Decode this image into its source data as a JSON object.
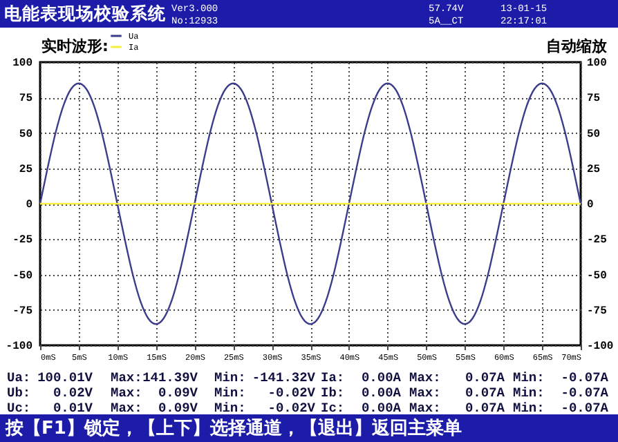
{
  "chart_data": {
    "type": "line",
    "title": "电能表现场校验系统",
    "subtitle": "实时波形:",
    "x": [
      0,
      1,
      2,
      3,
      4,
      5,
      6,
      7,
      8,
      9,
      10,
      11,
      12,
      13,
      14,
      15,
      16,
      17,
      18,
      19,
      20,
      21,
      22,
      23,
      24,
      25,
      26,
      27,
      28,
      29,
      30,
      31,
      32,
      33,
      34,
      35,
      36,
      37,
      38,
      39,
      40,
      41,
      42,
      43,
      44,
      45,
      46,
      47,
      48,
      49,
      50,
      51,
      52,
      53,
      54,
      55,
      56,
      57,
      58,
      59,
      60,
      61,
      62,
      63,
      64,
      65,
      66,
      67,
      68,
      69,
      70
    ],
    "series": [
      {
        "name": "Ua",
        "color": "#3c3c8c",
        "values": [
          0,
          26,
          50,
          69,
          81,
          85,
          81,
          69,
          50,
          26,
          0,
          -26,
          -50,
          -69,
          -81,
          -85,
          -81,
          -69,
          -50,
          -26,
          0,
          26,
          50,
          69,
          81,
          85,
          81,
          69,
          50,
          26,
          0,
          -26,
          -50,
          -69,
          -81,
          -85,
          -81,
          -69,
          -50,
          -26,
          0,
          26,
          50,
          69,
          81,
          85,
          81,
          69,
          50,
          26,
          0,
          -26,
          -50,
          -69,
          -81,
          -85,
          -81,
          -69,
          -50,
          -26,
          0,
          26,
          50,
          69,
          81,
          85,
          81,
          69,
          50,
          26,
          0
        ]
      },
      {
        "name": "Ia",
        "color": "#f5f03c",
        "values": [
          0,
          0,
          0,
          0,
          0,
          0,
          0,
          0,
          0,
          0,
          0,
          0,
          0,
          0,
          0,
          0,
          0,
          0,
          0,
          0,
          0,
          0,
          0,
          0,
          0,
          0,
          0,
          0,
          0,
          0,
          0,
          0,
          0,
          0,
          0,
          0,
          0,
          0,
          0,
          0,
          0,
          0,
          0,
          0,
          0,
          0,
          0,
          0,
          0,
          0,
          0,
          0,
          0,
          0,
          0,
          0,
          0,
          0,
          0,
          0,
          0,
          0,
          0,
          0,
          0,
          0,
          0,
          0,
          0,
          0,
          0
        ]
      }
    ],
    "xlim": [
      0,
      70
    ],
    "xticks": [
      {
        "value": 0,
        "label": "0mS"
      },
      {
        "value": 5,
        "label": "5mS"
      },
      {
        "value": 10,
        "label": "10mS"
      },
      {
        "value": 15,
        "label": "15mS"
      },
      {
        "value": 20,
        "label": "20mS"
      },
      {
        "value": 25,
        "label": "25mS"
      },
      {
        "value": 30,
        "label": "30mS"
      },
      {
        "value": 35,
        "label": "35mS"
      },
      {
        "value": 40,
        "label": "40mS"
      },
      {
        "value": 45,
        "label": "45mS"
      },
      {
        "value": 50,
        "label": "50mS"
      },
      {
        "value": 55,
        "label": "55mS"
      },
      {
        "value": 60,
        "label": "60mS"
      },
      {
        "value": 65,
        "label": "65mS"
      },
      {
        "value": 70,
        "label": "70mS"
      }
    ],
    "ylim": [
      -100,
      100
    ],
    "yticks": [
      -100,
      -75,
      -50,
      -25,
      0,
      25,
      50,
      75,
      100
    ],
    "y2lim": [
      -100,
      100
    ],
    "y2ticks": [
      -100,
      -75,
      -50,
      -25,
      0,
      25,
      50,
      75,
      100
    ],
    "grid": true,
    "legend": "top left",
    "marker": "none",
    "line_style": "solid",
    "annotations": [
      "Ver3.000",
      "No:12933",
      "57.74V",
      "5A__CT",
      "13-01-15",
      "22:17:01",
      "自动缩放",
      "按【F1】锁定，【上下】选择通道，【退出】返回主菜单",
      "Ua:",
      "100.01V",
      "Max:",
      "141.39V",
      "Min:",
      "-141.32V",
      "Ia:",
      "0.00A",
      "Max:",
      "0.07A",
      "Min:",
      "-0.07A",
      "Ub:",
      "0.02V",
      "Max:",
      "0.09V",
      "Min:",
      "-0.02V",
      "Ib:",
      "0.00A",
      "Max:",
      "0.07A",
      "Min:",
      "-0.07A",
      "Uc:",
      "0.01V",
      "Max:",
      "0.09V",
      "Min:",
      "-0.02V",
      "Ic:",
      "0.00A",
      "Max:",
      "0.07A",
      "Min:",
      "-0.07A"
    ]
  }
}
